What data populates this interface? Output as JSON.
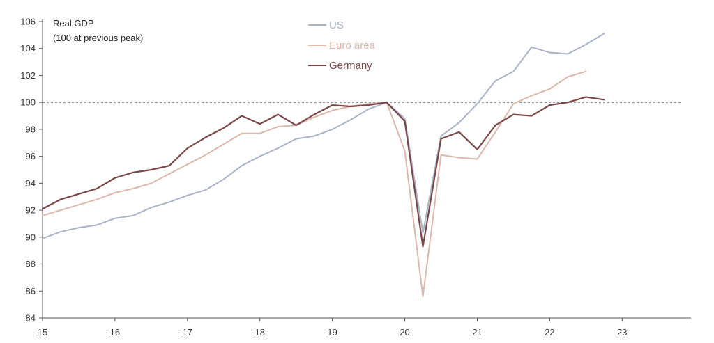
{
  "chart_data": {
    "type": "line",
    "title": "Real GDP",
    "subtitle": "(100 at previous peak)",
    "ylabel": "",
    "xlabel": "",
    "ylim": [
      84,
      106
    ],
    "xlim": [
      15,
      23.95
    ],
    "yticks": [
      84,
      86,
      88,
      90,
      92,
      94,
      96,
      98,
      100,
      102,
      104,
      106
    ],
    "ytick_labels": [
      "84",
      "86",
      "88",
      "90",
      "92",
      "94",
      "96",
      "98",
      "100",
      "102",
      "104",
      "106"
    ],
    "xticks": [
      15,
      16,
      17,
      18,
      19,
      20,
      21,
      22,
      23
    ],
    "xtick_labels": [
      "15",
      "16",
      "17",
      "18",
      "19",
      "20",
      "21",
      "22",
      "23"
    ],
    "reference_line": 100,
    "grid": false,
    "legend_position": "top-center",
    "series": [
      {
        "name": "US",
        "color": "#a8b3c6",
        "x": [
          15.0,
          15.25,
          15.5,
          15.75,
          16.0,
          16.25,
          16.5,
          16.75,
          17.0,
          17.25,
          17.5,
          17.75,
          18.0,
          18.25,
          18.5,
          18.75,
          19.0,
          19.25,
          19.5,
          19.75,
          20.0,
          20.25,
          20.5,
          20.75,
          21.0,
          21.25,
          21.5,
          21.75,
          22.0,
          22.25,
          22.5,
          22.75
        ],
        "values": [
          89.9,
          90.4,
          90.7,
          90.9,
          91.4,
          91.6,
          92.2,
          92.6,
          93.1,
          93.5,
          94.3,
          95.3,
          96.0,
          96.6,
          97.3,
          97.5,
          98.0,
          98.7,
          99.5,
          100.0,
          98.8,
          90.3,
          97.5,
          98.5,
          99.9,
          101.6,
          102.3,
          104.1,
          103.7,
          103.6,
          104.3,
          105.1
        ]
      },
      {
        "name": "Euro area",
        "color": "#dcb8ac",
        "x": [
          15.0,
          15.25,
          15.5,
          15.75,
          16.0,
          16.25,
          16.5,
          16.75,
          17.0,
          17.25,
          17.5,
          17.75,
          18.0,
          18.25,
          18.5,
          18.75,
          19.0,
          19.25,
          19.5,
          19.75,
          20.0,
          20.25,
          20.5,
          20.75,
          21.0,
          21.25,
          21.5,
          21.75,
          22.0,
          22.25,
          22.5
        ],
        "values": [
          91.6,
          92.0,
          92.4,
          92.8,
          93.3,
          93.6,
          94.0,
          94.7,
          95.4,
          96.1,
          96.9,
          97.7,
          97.7,
          98.2,
          98.3,
          98.9,
          99.4,
          99.7,
          99.9,
          100.0,
          96.4,
          85.6,
          96.1,
          95.9,
          95.8,
          97.8,
          99.9,
          100.5,
          101.0,
          101.9,
          102.3
        ]
      },
      {
        "name": "Germany",
        "color": "#7a4747",
        "x": [
          15.0,
          15.25,
          15.5,
          15.75,
          16.0,
          16.25,
          16.5,
          16.75,
          17.0,
          17.25,
          17.5,
          17.75,
          18.0,
          18.25,
          18.5,
          18.75,
          19.0,
          19.25,
          19.5,
          19.75,
          20.0,
          20.25,
          20.5,
          20.75,
          21.0,
          21.25,
          21.5,
          21.75,
          22.0,
          22.25,
          22.5,
          22.75
        ],
        "values": [
          92.1,
          92.8,
          93.2,
          93.6,
          94.4,
          94.8,
          95.0,
          95.3,
          96.6,
          97.4,
          98.1,
          99.0,
          98.4,
          99.1,
          98.3,
          99.1,
          99.8,
          99.7,
          99.8,
          100.0,
          98.6,
          89.3,
          97.3,
          97.8,
          96.5,
          98.3,
          99.1,
          99.0,
          99.8,
          100.0,
          100.4,
          100.2
        ]
      }
    ]
  }
}
